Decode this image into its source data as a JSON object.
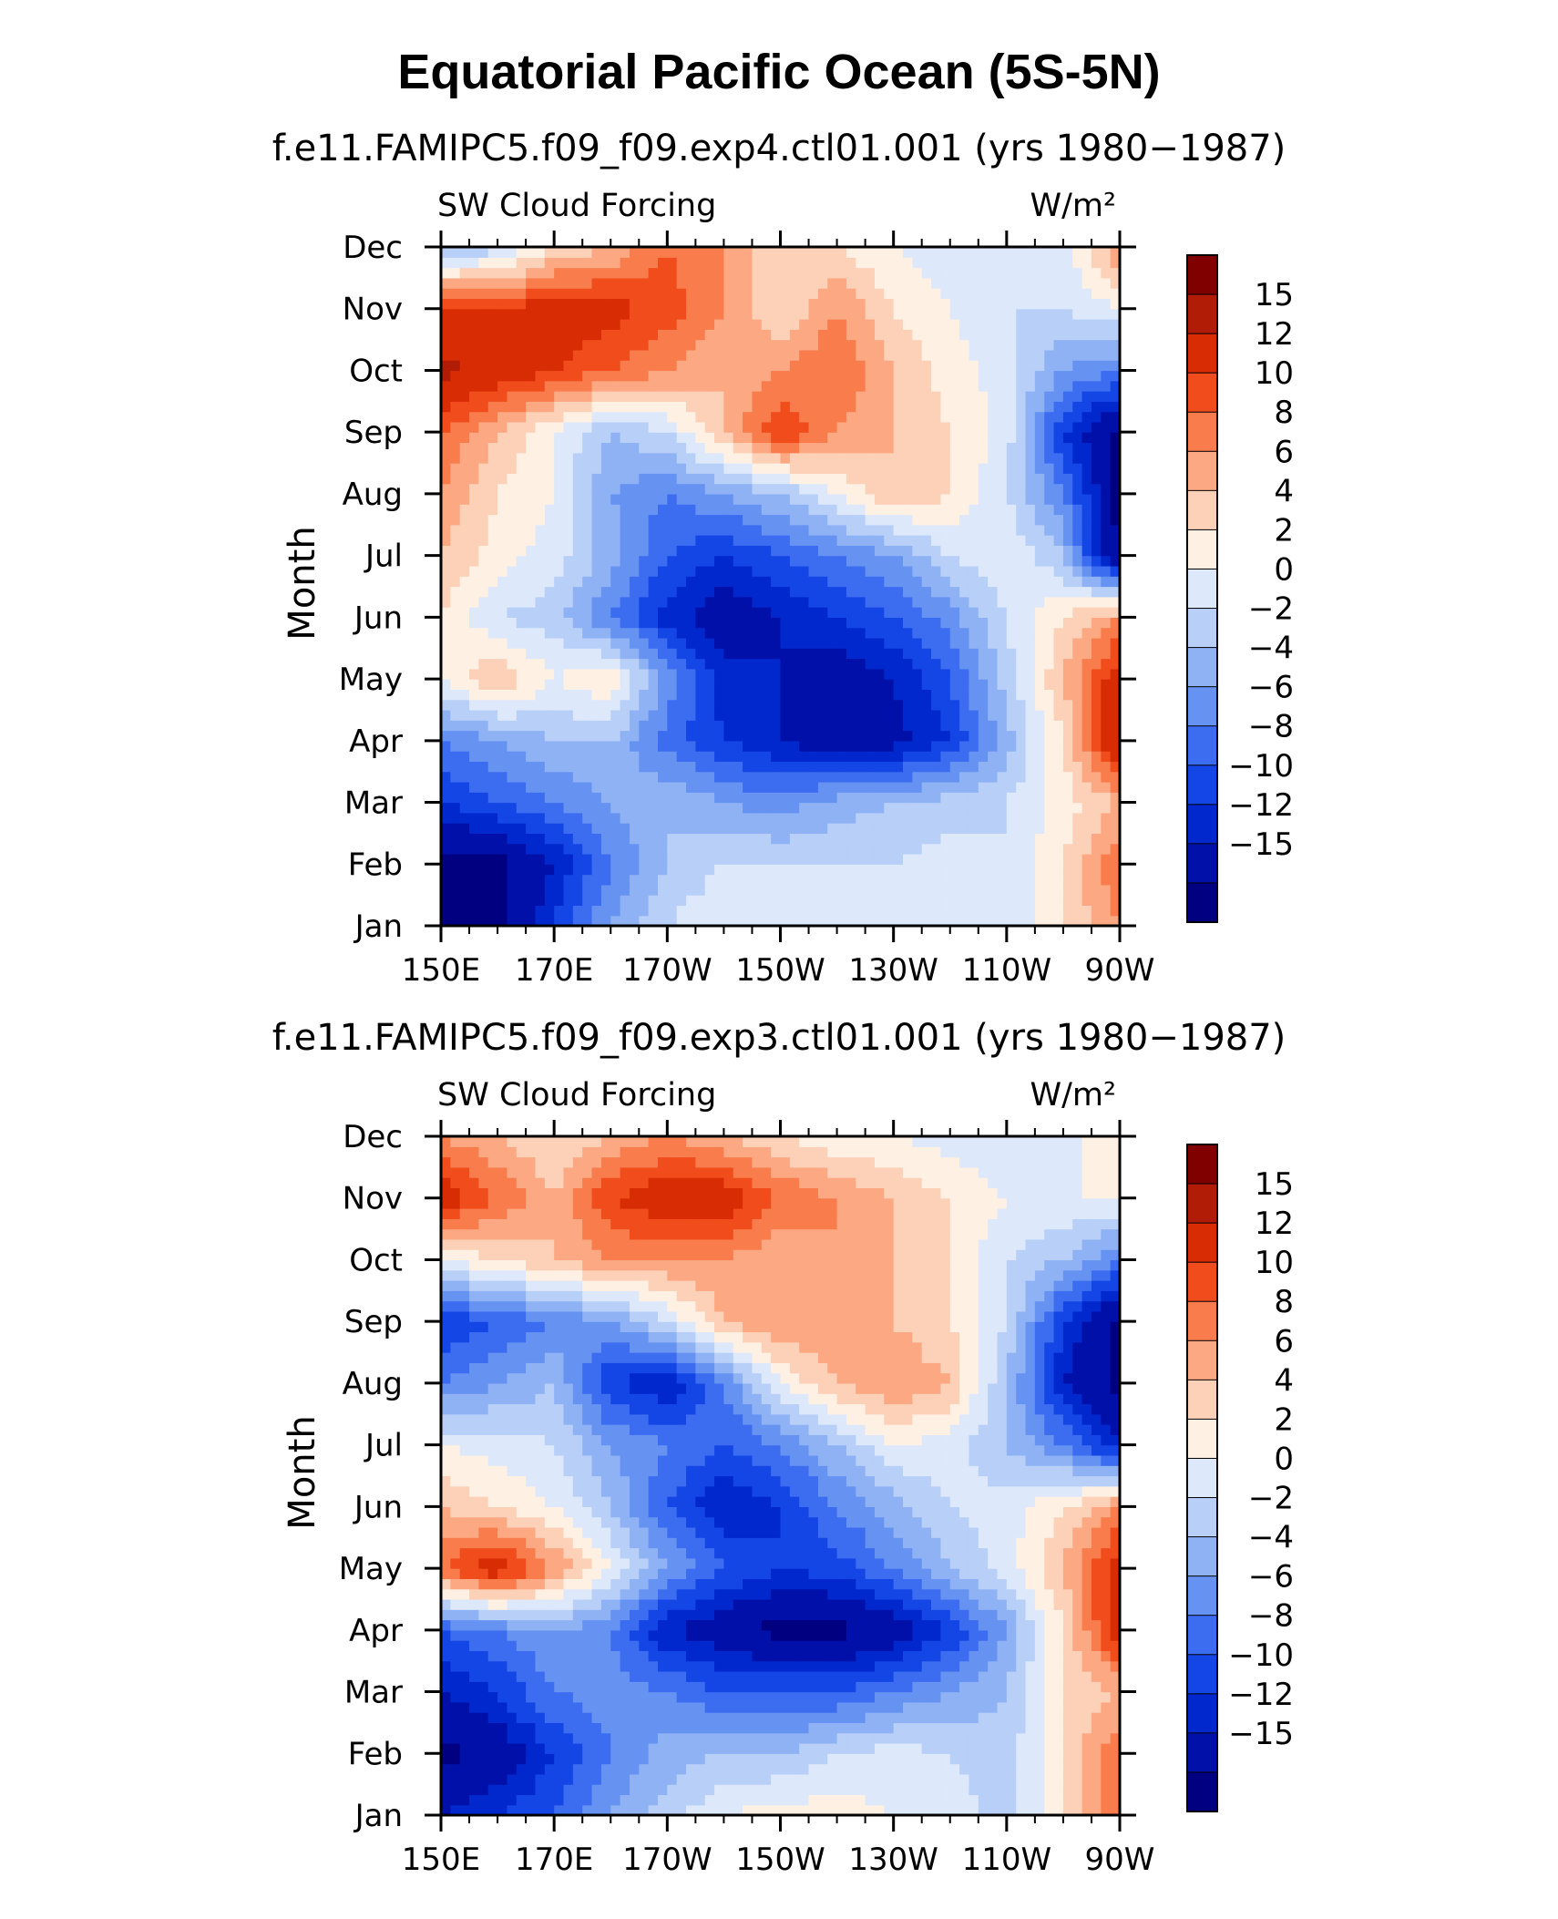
{
  "title": "Equatorial Pacific Ocean (5S-5N)",
  "colors": {
    "levels": [
      "#000080",
      "#0010a8",
      "#0028cc",
      "#1446e6",
      "#3c6cf0",
      "#6692f2",
      "#8fb2f5",
      "#b8cff8",
      "#dde8fb",
      "#fff0e4",
      "#fdd0b8",
      "#fca882",
      "#f87c4c",
      "#f04c1c",
      "#d82c04",
      "#b01c06",
      "#800000"
    ]
  },
  "chart_data": [
    {
      "type": "heatmap",
      "subtitle": "f.e11.FAMIPC5.f09_f09.exp4.ctl01.001 (yrs 1980−1987)",
      "variable": "SW Cloud Forcing",
      "units": "W/m²",
      "ylabel": "Month",
      "xticks": [
        "150E",
        "170E",
        "170W",
        "150W",
        "130W",
        "110W",
        "90W"
      ],
      "yticks": [
        "Jan",
        "Feb",
        "Mar",
        "Apr",
        "May",
        "Jun",
        "Jul",
        "Aug",
        "Sep",
        "Oct",
        "Nov",
        "Dec"
      ],
      "colorbar_labels": [
        "15",
        "12",
        "10",
        "8",
        "6",
        "4",
        "2",
        "0",
        "−2",
        "−4",
        "−6",
        "−8",
        "−10",
        "−12",
        "−15"
      ],
      "x": [
        "150E",
        "160E",
        "170E",
        "180",
        "170W",
        "160W",
        "150W",
        "140W",
        "130W",
        "120W",
        "110W",
        "100W",
        "90W"
      ],
      "y": [
        "Jan",
        "Feb",
        "Mar",
        "Apr",
        "May",
        "Jun",
        "Jul",
        "Aug",
        "Sep",
        "Oct",
        "Nov",
        "Dec"
      ],
      "values": [
        [
          -16,
          -16,
          -10,
          -4,
          0,
          2,
          2,
          1,
          1,
          1,
          0,
          4,
          8
        ],
        [
          -16,
          -16,
          -12,
          -6,
          -2,
          0,
          0,
          0,
          0,
          1,
          0,
          4,
          10
        ],
        [
          -10,
          -8,
          -6,
          -4,
          -2,
          -4,
          -5,
          -3,
          -2,
          -1,
          0,
          3,
          6
        ],
        [
          -6,
          -4,
          -2,
          -2,
          -7,
          -10,
          -12,
          -14,
          -13,
          -10,
          -3,
          4,
          16
        ],
        [
          2,
          6,
          2,
          4,
          -5,
          -11,
          -12,
          -14,
          -12,
          -8,
          -1,
          6,
          14
        ],
        [
          4,
          0,
          -1,
          -6,
          -11,
          -14,
          -12,
          -10,
          -8,
          -5,
          0,
          4,
          8
        ],
        [
          6,
          3,
          1,
          -3,
          -8,
          -10,
          -8,
          -6,
          -4,
          0,
          2,
          -2,
          -16
        ],
        [
          8,
          4,
          2,
          -4,
          -6,
          -4,
          -2,
          2,
          6,
          4,
          0,
          -6,
          -16
        ],
        [
          10,
          6,
          2,
          -2,
          0,
          6,
          12,
          8,
          6,
          4,
          1,
          -10,
          -16
        ],
        [
          16,
          14,
          12,
          10,
          8,
          6,
          8,
          10,
          6,
          3,
          1,
          -4,
          -6
        ],
        [
          12,
          12,
          14,
          13,
          11,
          8,
          4,
          8,
          4,
          2,
          0,
          0,
          2
        ],
        [
          -2,
          -1,
          4,
          6,
          10,
          8,
          4,
          4,
          2,
          0,
          2,
          1,
          8
        ]
      ]
    },
    {
      "type": "heatmap",
      "subtitle": "f.e11.FAMIPC5.f09_f09.exp3.ctl01.001 (yrs 1980−1987)",
      "variable": "SW Cloud Forcing",
      "units": "W/m²",
      "ylabel": "Month",
      "xticks": [
        "150E",
        "170E",
        "170W",
        "150W",
        "130W",
        "110W",
        "90W"
      ],
      "yticks": [
        "Jan",
        "Feb",
        "Mar",
        "Apr",
        "May",
        "Jun",
        "Jul",
        "Aug",
        "Sep",
        "Oct",
        "Nov",
        "Dec"
      ],
      "colorbar_labels": [
        "15",
        "12",
        "10",
        "8",
        "6",
        "4",
        "2",
        "0",
        "−2",
        "−4",
        "−6",
        "−8",
        "−10",
        "−12",
        "−15"
      ],
      "x": [
        "150E",
        "160E",
        "170E",
        "180",
        "170W",
        "160W",
        "150W",
        "140W",
        "130W",
        "120W",
        "110W",
        "100W",
        "90W"
      ],
      "y": [
        "Jan",
        "Feb",
        "Mar",
        "Apr",
        "May",
        "Jun",
        "Jul",
        "Aug",
        "Sep",
        "Oct",
        "Nov",
        "Dec"
      ],
      "values": [
        [
          -12,
          -10,
          -8,
          -4,
          -1,
          2,
          3,
          3,
          2,
          1,
          -1,
          4,
          10
        ],
        [
          -16,
          -14,
          -10,
          -6,
          -3,
          -2,
          -2,
          0,
          1,
          0,
          -1,
          4,
          10
        ],
        [
          -12,
          -10,
          -6,
          -5,
          -6,
          -8,
          -8,
          -8,
          -6,
          -4,
          -2,
          4,
          6
        ],
        [
          -8,
          -6,
          -4,
          -6,
          -12,
          -14,
          -16,
          -16,
          -14,
          -10,
          -4,
          4,
          14
        ],
        [
          10,
          14,
          8,
          2,
          -4,
          -8,
          -10,
          -9,
          -6,
          -2,
          1,
          6,
          14
        ],
        [
          6,
          4,
          2,
          -2,
          -8,
          -12,
          -10,
          -6,
          -3,
          0,
          1,
          4,
          8
        ],
        [
          2,
          1,
          0,
          -4,
          -6,
          -8,
          -6,
          -2,
          2,
          1,
          -2,
          -6,
          -12
        ],
        [
          -6,
          -4,
          -2,
          -10,
          -12,
          -6,
          2,
          6,
          8,
          6,
          -2,
          -12,
          -16
        ],
        [
          -10,
          -8,
          -6,
          -4,
          0,
          6,
          8,
          8,
          6,
          4,
          0,
          -10,
          -16
        ],
        [
          2,
          4,
          6,
          8,
          8,
          8,
          6,
          8,
          6,
          4,
          0,
          -2,
          -6
        ],
        [
          14,
          10,
          6,
          12,
          14,
          14,
          10,
          8,
          6,
          4,
          2,
          2,
          2
        ],
        [
          8,
          6,
          4,
          6,
          8,
          6,
          4,
          2,
          2,
          1,
          0,
          1,
          4
        ]
      ]
    }
  ]
}
